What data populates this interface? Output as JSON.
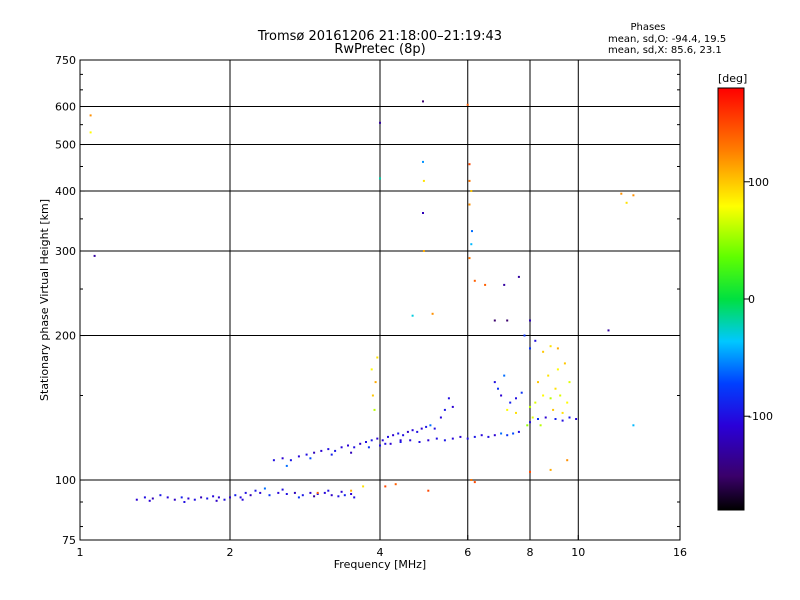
{
  "chart_data": {
    "type": "scatter",
    "title": "Tromsø 20161206 21:18:00–21:19:43",
    "subtitle": "RwPretec (8p)",
    "stats": {
      "heading": "Phases",
      "line_o": "mean, sd,O: -94.4, 19.5",
      "line_x": "mean, sd,X: 85.6, 23.1"
    },
    "xlabel": "Frequency [MHz]",
    "ylabel": "Stationary phase Virtual Height [km]",
    "x_scale": "log",
    "y_scale": "log",
    "xlim": [
      1,
      16
    ],
    "ylim": [
      75,
      750
    ],
    "x_ticks": [
      {
        "value": 1,
        "label": "1"
      },
      {
        "value": 2,
        "label": "2"
      },
      {
        "value": 4,
        "label": "4"
      },
      {
        "value": 6,
        "label": "6"
      },
      {
        "value": 8,
        "label": "8"
      },
      {
        "value": 10,
        "label": "10"
      },
      {
        "value": 16,
        "label": "16"
      }
    ],
    "y_ticks": [
      {
        "value": 75,
        "label": "75"
      },
      {
        "value": 100,
        "label": "100"
      },
      {
        "value": 200,
        "label": "200"
      },
      {
        "value": 300,
        "label": "300"
      },
      {
        "value": 400,
        "label": "400"
      },
      {
        "value": 500,
        "label": "500"
      },
      {
        "value": 600,
        "label": "600"
      },
      {
        "value": 750,
        "label": "750"
      }
    ],
    "grid": true,
    "colorbar": {
      "label": "[deg]",
      "range": [
        -180,
        180
      ],
      "ticks": [
        {
          "value": 100,
          "label": "100"
        },
        {
          "value": 0,
          "label": "0"
        },
        {
          "value": -100,
          "label": "-100"
        }
      ]
    },
    "points": [
      [
        1.05,
        575,
        120
      ],
      [
        1.05,
        530,
        80
      ],
      [
        1.07,
        293,
        -130
      ],
      [
        1.3,
        91,
        -110
      ],
      [
        1.35,
        92,
        -100
      ],
      [
        1.4,
        91.5,
        -120
      ],
      [
        1.45,
        93,
        -95
      ],
      [
        1.5,
        92,
        -105
      ],
      [
        1.55,
        91,
        -115
      ],
      [
        1.6,
        92,
        -90
      ],
      [
        1.65,
        91.5,
        -110
      ],
      [
        1.7,
        91,
        -100
      ],
      [
        1.75,
        92,
        -120
      ],
      [
        1.8,
        91.5,
        -95
      ],
      [
        1.85,
        92.5,
        -105
      ],
      [
        1.9,
        92,
        -110
      ],
      [
        1.95,
        91,
        -100
      ],
      [
        2.0,
        92,
        -115
      ],
      [
        2.05,
        93,
        -90
      ],
      [
        2.1,
        92,
        -105
      ],
      [
        2.15,
        94,
        -100
      ],
      [
        2.2,
        93,
        -120
      ],
      [
        2.25,
        95,
        -95
      ],
      [
        2.3,
        94,
        -110
      ],
      [
        2.4,
        93,
        -80
      ],
      [
        2.5,
        94,
        -105
      ],
      [
        2.6,
        93.5,
        -100
      ],
      [
        2.7,
        94,
        -120
      ],
      [
        2.8,
        93,
        -95
      ],
      [
        2.9,
        94,
        -110
      ],
      [
        3.0,
        93.5,
        -100
      ],
      [
        3.1,
        94,
        -105
      ],
      [
        3.2,
        93,
        -115
      ],
      [
        3.3,
        92.5,
        -100
      ],
      [
        3.4,
        93,
        -90
      ],
      [
        3.5,
        93.5,
        -110
      ],
      [
        1.38,
        90.5,
        -110
      ],
      [
        1.62,
        90,
        -100
      ],
      [
        1.88,
        90.5,
        -115
      ],
      [
        2.12,
        91,
        -105
      ],
      [
        2.35,
        96,
        -60
      ],
      [
        2.55,
        95.5,
        -100
      ],
      [
        2.75,
        92,
        -80
      ],
      [
        2.95,
        92.5,
        -130
      ],
      [
        3.15,
        95,
        -100
      ],
      [
        3.35,
        94.5,
        -110
      ],
      [
        3.55,
        92,
        -100
      ],
      [
        2.45,
        110,
        -100
      ],
      [
        2.55,
        111,
        -110
      ],
      [
        2.65,
        110,
        -95
      ],
      [
        2.75,
        112,
        -105
      ],
      [
        2.85,
        113,
        -100
      ],
      [
        2.95,
        114,
        -120
      ],
      [
        3.05,
        115,
        -110
      ],
      [
        3.15,
        116,
        -100
      ],
      [
        3.25,
        115,
        -95
      ],
      [
        3.35,
        117,
        -105
      ],
      [
        3.45,
        118,
        -110
      ],
      [
        3.55,
        117,
        -100
      ],
      [
        3.65,
        119,
        -115
      ],
      [
        3.75,
        120,
        -100
      ],
      [
        3.85,
        121,
        -95
      ],
      [
        3.95,
        122,
        -110
      ],
      [
        4.05,
        121,
        -105
      ],
      [
        4.15,
        123,
        -100
      ],
      [
        4.25,
        124,
        -110
      ],
      [
        4.35,
        125,
        -95
      ],
      [
        4.45,
        124,
        -100
      ],
      [
        4.55,
        126,
        -115
      ],
      [
        4.65,
        127,
        -105
      ],
      [
        4.75,
        126,
        -100
      ],
      [
        4.85,
        128,
        -110
      ],
      [
        4.95,
        129,
        -95
      ],
      [
        5.05,
        130,
        -60
      ],
      [
        5.15,
        128,
        -100
      ],
      [
        5.3,
        135,
        -105
      ],
      [
        5.4,
        140,
        -95
      ],
      [
        5.5,
        148,
        -100
      ],
      [
        5.6,
        142,
        -110
      ],
      [
        2.6,
        107,
        -60
      ],
      [
        2.9,
        111,
        -70
      ],
      [
        3.2,
        113,
        -90
      ],
      [
        3.5,
        114,
        -120
      ],
      [
        3.8,
        117,
        -80
      ],
      [
        4.1,
        119,
        -100
      ],
      [
        4.4,
        121,
        -110
      ],
      [
        4.0,
        118,
        -100
      ],
      [
        4.2,
        119,
        -110
      ],
      [
        4.4,
        120,
        -95
      ],
      [
        4.6,
        121,
        -105
      ],
      [
        4.8,
        120,
        -100
      ],
      [
        5.0,
        121,
        -110
      ],
      [
        5.2,
        122,
        -100
      ],
      [
        5.4,
        121,
        -95
      ],
      [
        5.6,
        122,
        -105
      ],
      [
        5.8,
        123,
        -110
      ],
      [
        6.0,
        122,
        -100
      ],
      [
        6.2,
        123,
        -95
      ],
      [
        6.4,
        124,
        -105
      ],
      [
        6.6,
        123,
        -100
      ],
      [
        6.8,
        124,
        -110
      ],
      [
        7.0,
        125,
        -60
      ],
      [
        7.2,
        124,
        -80
      ],
      [
        7.4,
        125,
        -70
      ],
      [
        7.6,
        126,
        -100
      ],
      [
        6.8,
        160,
        -100
      ],
      [
        6.9,
        155,
        -80
      ],
      [
        7.0,
        150,
        -110
      ],
      [
        7.1,
        165,
        -60
      ],
      [
        7.3,
        145,
        -90
      ],
      [
        7.5,
        148,
        -100
      ],
      [
        7.7,
        152,
        -80
      ],
      [
        7.2,
        140,
        80
      ],
      [
        7.5,
        138,
        90
      ],
      [
        8.0,
        142,
        60
      ],
      [
        8.2,
        145,
        70
      ],
      [
        8.5,
        150,
        80
      ],
      [
        8.8,
        148,
        60
      ],
      [
        9.0,
        155,
        90
      ],
      [
        9.2,
        150,
        70
      ],
      [
        9.5,
        145,
        80
      ],
      [
        8.3,
        160,
        100
      ],
      [
        8.7,
        165,
        90
      ],
      [
        9.1,
        170,
        80
      ],
      [
        9.4,
        175,
        100
      ],
      [
        8.1,
        135,
        70
      ],
      [
        8.4,
        130,
        60
      ],
      [
        8.9,
        140,
        100
      ],
      [
        9.3,
        138,
        90
      ],
      [
        7.9,
        130,
        50
      ],
      [
        9.6,
        160,
        70
      ],
      [
        8.0,
        132,
        -100
      ],
      [
        8.3,
        134,
        -80
      ],
      [
        8.6,
        135,
        -110
      ],
      [
        9.0,
        134,
        -90
      ],
      [
        9.3,
        133,
        -100
      ],
      [
        9.6,
        135,
        -95
      ],
      [
        9.9,
        134,
        -105
      ],
      [
        8.5,
        185,
        100
      ],
      [
        8.8,
        190,
        90
      ],
      [
        9.1,
        188,
        110
      ],
      [
        8.0,
        188,
        -80
      ],
      [
        8.2,
        195,
        -100
      ],
      [
        3.85,
        170,
        80
      ],
      [
        3.87,
        150,
        100
      ],
      [
        3.9,
        140,
        60
      ],
      [
        3.92,
        160,
        110
      ],
      [
        3.95,
        180,
        90
      ],
      [
        4.0,
        425,
        -20
      ],
      [
        4.0,
        555,
        -130
      ],
      [
        4.88,
        615,
        -150
      ],
      [
        4.88,
        460,
        -50
      ],
      [
        4.9,
        420,
        90
      ],
      [
        4.88,
        360,
        -120
      ],
      [
        4.9,
        300,
        110
      ],
      [
        4.65,
        220,
        -30
      ],
      [
        5.1,
        222,
        120
      ],
      [
        6.0,
        605,
        140
      ],
      [
        6.05,
        455,
        150
      ],
      [
        6.05,
        420,
        130
      ],
      [
        6.1,
        400,
        100
      ],
      [
        6.05,
        375,
        120
      ],
      [
        6.12,
        330,
        -60
      ],
      [
        6.1,
        310,
        -40
      ],
      [
        6.05,
        290,
        130
      ],
      [
        6.2,
        260,
        140
      ],
      [
        6.5,
        255,
        140
      ],
      [
        7.1,
        255,
        -130
      ],
      [
        7.6,
        265,
        -130
      ],
      [
        6.8,
        215,
        -150
      ],
      [
        7.2,
        215,
        -150
      ],
      [
        8.0,
        215,
        -120
      ],
      [
        7.8,
        200,
        -80
      ],
      [
        11.5,
        205,
        -130
      ],
      [
        12.2,
        395,
        120
      ],
      [
        12.5,
        378,
        90
      ],
      [
        12.9,
        392,
        120
      ],
      [
        12.9,
        130,
        -40
      ],
      [
        3.5,
        95,
        110
      ],
      [
        3.7,
        97,
        90
      ],
      [
        4.1,
        97,
        150
      ],
      [
        4.3,
        98,
        140
      ],
      [
        5.0,
        95,
        150
      ],
      [
        6.1,
        100,
        130
      ],
      [
        8.0,
        104,
        150
      ],
      [
        8.8,
        105,
        110
      ],
      [
        9.5,
        110,
        120
      ],
      [
        6.2,
        99,
        150
      ],
      [
        3.0,
        94,
        140
      ]
    ]
  }
}
